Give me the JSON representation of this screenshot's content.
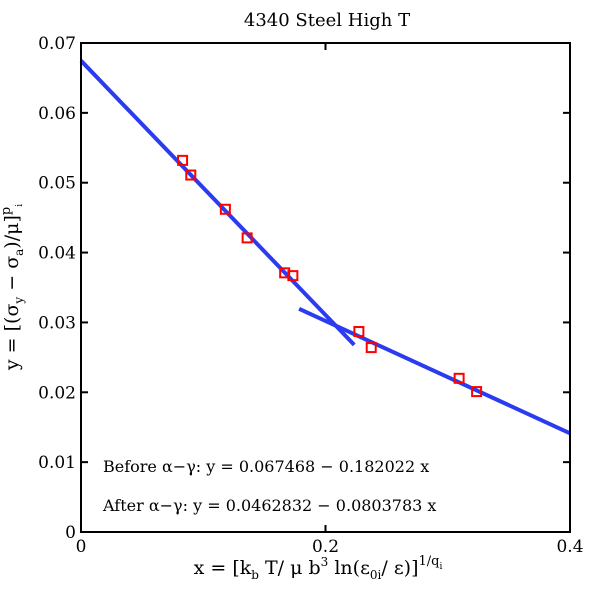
{
  "chart_data": {
    "type": "scatter",
    "title": "4340 Steel High T",
    "xlim": [
      0,
      0.4
    ],
    "ylim": [
      0,
      0.07
    ],
    "grid": false,
    "x_ticks": [
      {
        "value": 0,
        "label": "0"
      },
      {
        "value": 0.2,
        "label": "0.2"
      },
      {
        "value": 0.4,
        "label": "0.4"
      }
    ],
    "y_ticks": [
      {
        "value": 0,
        "label": "0"
      },
      {
        "value": 0.01,
        "label": "0.01"
      },
      {
        "value": 0.02,
        "label": "0.02"
      },
      {
        "value": 0.03,
        "label": "0.03"
      },
      {
        "value": 0.04,
        "label": "0.04"
      },
      {
        "value": 0.05,
        "label": "0.05"
      },
      {
        "value": 0.06,
        "label": "0.06"
      },
      {
        "value": 0.07,
        "label": "0.07"
      }
    ],
    "points": {
      "x": [
        0.0831,
        0.0898,
        0.1181,
        0.1359,
        0.1666,
        0.1733,
        0.2273,
        0.2374,
        0.3093,
        0.3236
      ],
      "y": [
        0.0532,
        0.0511,
        0.0462,
        0.0421,
        0.0371,
        0.0367,
        0.0287,
        0.0264,
        0.022,
        0.0201
      ],
      "marker": "square",
      "color": "#ff0000"
    },
    "fit_lines": [
      {
        "intercept": 0.067468,
        "slope": -0.182022,
        "x_range": [
          0,
          0.2235
        ],
        "color": "#2b3bf0"
      },
      {
        "intercept": 0.0462832,
        "slope": -0.0803783,
        "x_range": [
          0.1784,
          0.4
        ],
        "color": "#2b3bf0"
      }
    ],
    "annotations": [
      "Before α−γ: y = 0.067468 − 0.182022 x",
      "After α−γ: y = 0.0462832 − 0.0803783 x"
    ],
    "xlabel": {
      "parts": [
        "x = [k",
        "b",
        " T/ μ b",
        "3",
        " ln(ε",
        "0i",
        "/ ε)]",
        "1/q",
        "i"
      ]
    },
    "ylabel": {
      "parts": [
        "y = [(σ",
        "y",
        " − σ",
        "a",
        ")/μ]",
        "p",
        "i"
      ]
    }
  }
}
